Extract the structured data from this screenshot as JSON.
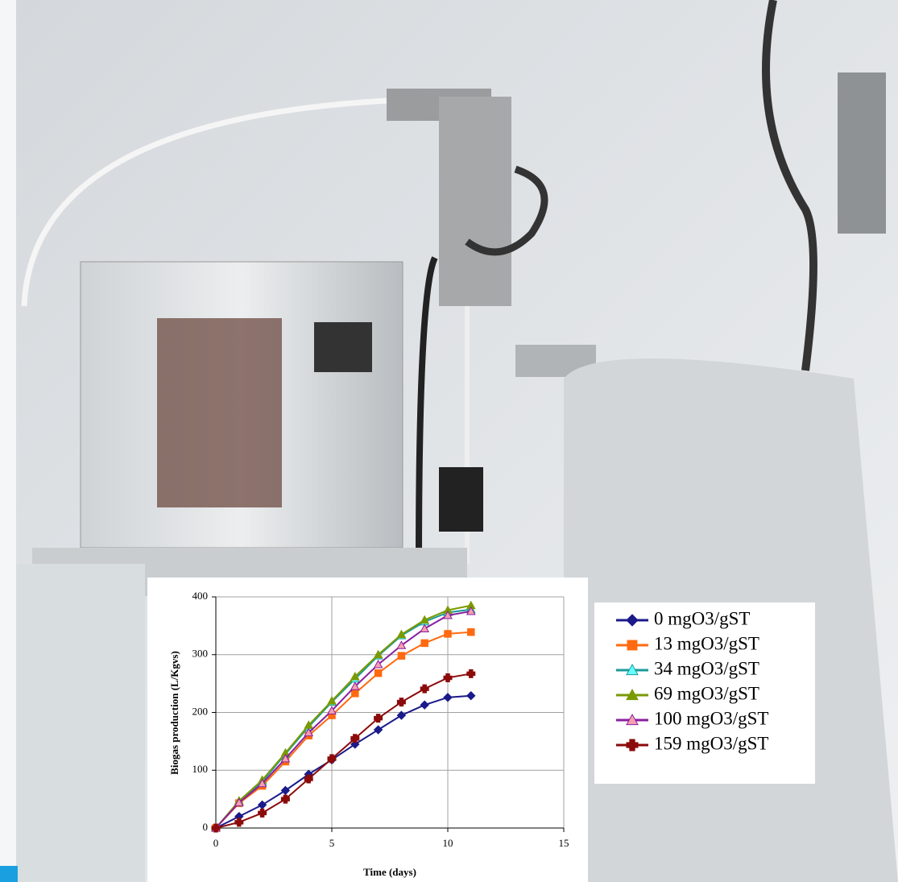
{
  "chart_data": {
    "type": "line",
    "x_label": "Time (days)",
    "y_label": "Biogas production (L/Kgvs)",
    "x": [
      0,
      1,
      2,
      3,
      4,
      5,
      6,
      7,
      8,
      9,
      10,
      11
    ],
    "xlim": [
      0,
      15
    ],
    "xticks": [
      0,
      5,
      10,
      15
    ],
    "ylim": [
      0,
      400
    ],
    "yticks": [
      0,
      100,
      200,
      300,
      400
    ],
    "grid": true,
    "series": [
      {
        "name": "0 mgO3/gST",
        "color": "#1a1a8a",
        "marker": "diamond",
        "marker_fill": "#1a1a8a",
        "values": [
          0,
          20,
          40,
          65,
          93,
          118,
          145,
          170,
          195,
          213,
          226,
          229
        ]
      },
      {
        "name": "13 mgO3/gST",
        "color": "#ff6a10",
        "marker": "square",
        "marker_fill": "#ff6a10",
        "values": [
          0,
          43,
          73,
          115,
          160,
          195,
          233,
          268,
          298,
          320,
          336,
          339
        ]
      },
      {
        "name": "34 mgO3/gST",
        "color": "#1a9a9a",
        "marker": "triangle",
        "marker_fill": "#66ffff",
        "values": [
          0,
          46,
          80,
          128,
          175,
          218,
          258,
          298,
          333,
          357,
          373,
          378
        ]
      },
      {
        "name": "69 mgO3/gST",
        "color": "#7a9a00",
        "marker": "triangle",
        "marker_fill": "#7a9a00",
        "values": [
          0,
          47,
          83,
          130,
          178,
          220,
          262,
          300,
          335,
          360,
          377,
          385
        ]
      },
      {
        "name": "100 mgO3/gST",
        "color": "#8a1f9e",
        "marker": "triangle",
        "marker_fill": "#f5a0b0",
        "values": [
          0,
          44,
          77,
          120,
          165,
          203,
          245,
          283,
          316,
          345,
          368,
          375
        ]
      },
      {
        "name": "159 mgO3/gST",
        "color": "#8b0a0a",
        "marker": "cross",
        "marker_fill": "#8b0a0a",
        "values": [
          0,
          10,
          26,
          50,
          85,
          120,
          155,
          190,
          218,
          241,
          260,
          267
        ]
      }
    ]
  }
}
